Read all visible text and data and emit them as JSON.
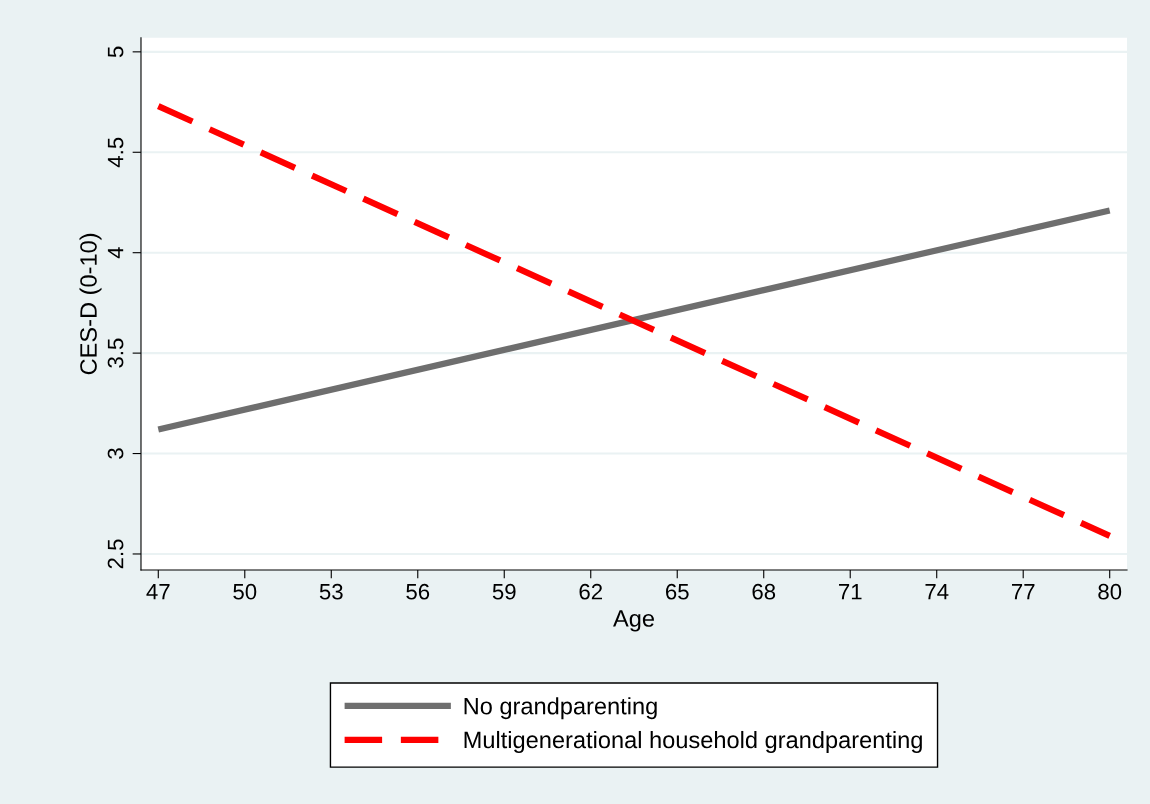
{
  "chart_data": {
    "type": "line",
    "xlabel": "Age",
    "ylabel": "CES-D (0-10)",
    "x": [
      47,
      80
    ],
    "series": [
      {
        "name": "No grandparenting",
        "color": "#6e6e6e",
        "values": [
          3.12,
          4.21
        ],
        "line_style": "solid"
      },
      {
        "name": "Multigenerational household grandparenting",
        "color": "#ff0000",
        "values": [
          4.73,
          2.59
        ],
        "line_style": "dashed"
      }
    ],
    "xlim": [
      46.4,
      80.6
    ],
    "xticks": [
      47,
      50,
      53,
      56,
      59,
      62,
      65,
      68,
      71,
      74,
      77,
      80
    ],
    "ylim": [
      2.42,
      5.07
    ],
    "yticks": [
      2.5,
      3,
      3.5,
      4,
      4.5,
      5
    ],
    "grid": "y",
    "legend": "bottom",
    "marker": "none"
  }
}
